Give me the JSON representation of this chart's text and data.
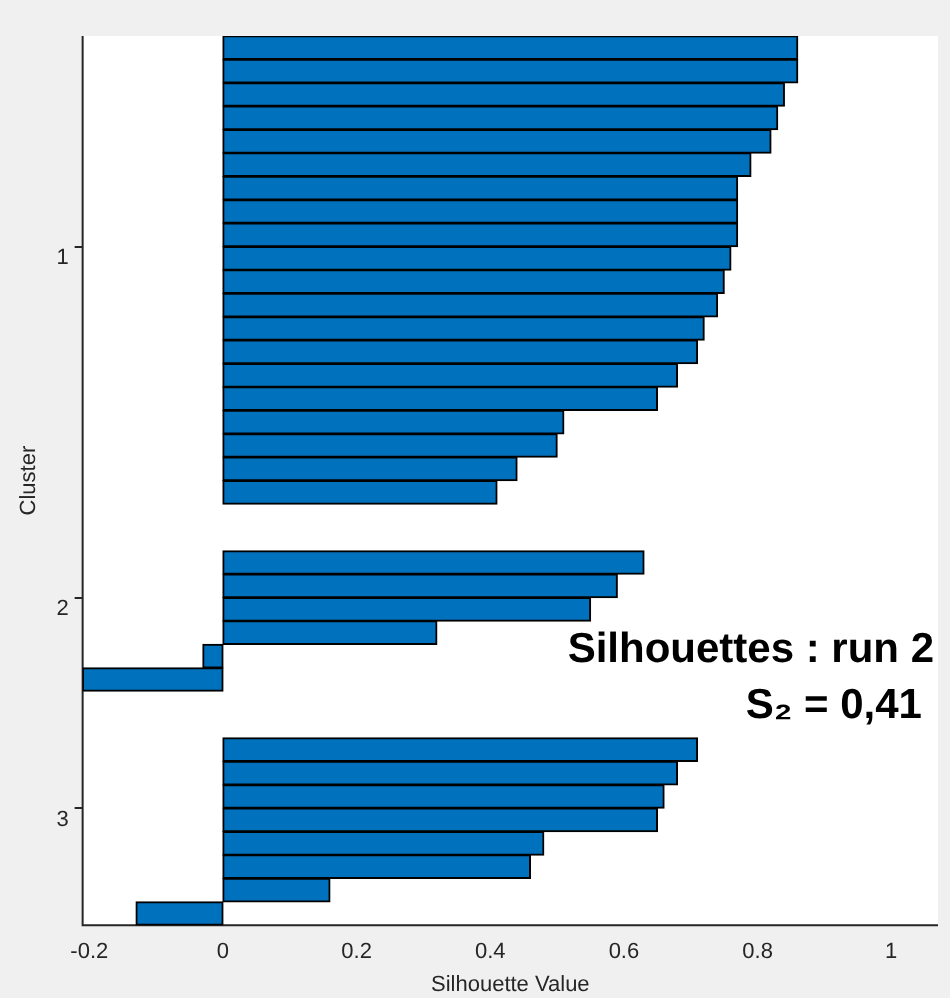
{
  "chart_data": {
    "type": "bar",
    "orientation": "horizontal",
    "categories": [
      null,
      null,
      null,
      null,
      null,
      null,
      null,
      null,
      null,
      "1",
      null,
      null,
      null,
      null,
      null,
      null,
      null,
      null,
      null,
      null,
      null,
      null,
      null,
      null,
      "2",
      null,
      null,
      null,
      null,
      null,
      null,
      null,
      null,
      "3",
      null,
      null,
      null,
      null
    ],
    "values": [
      0.86,
      0.86,
      0.84,
      0.83,
      0.82,
      0.79,
      0.77,
      0.77,
      0.77,
      0.76,
      0.75,
      0.74,
      0.72,
      0.71,
      0.68,
      0.65,
      0.51,
      0.5,
      0.44,
      0.41,
      null,
      null,
      0.63,
      0.59,
      0.55,
      0.32,
      -0.03,
      -0.21,
      null,
      null,
      0.71,
      0.68,
      0.66,
      0.65,
      0.48,
      0.46,
      0.16,
      -0.13
    ],
    "color": "#0072bd",
    "xlabel": "Silhouette Value",
    "ylabel": "Cluster",
    "xlim": [
      -0.21,
      1.07
    ],
    "xticks": [
      -0.2,
      0,
      0.2,
      0.4,
      0.6,
      0.8,
      1
    ],
    "annotations": [
      "Silhouettes : run 2",
      "S₂ = 0,41"
    ]
  }
}
